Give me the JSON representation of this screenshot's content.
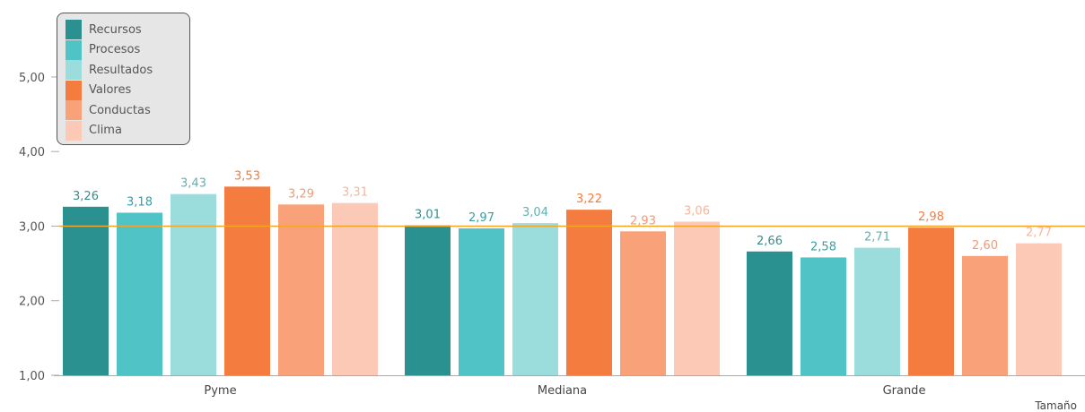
{
  "chart_data": {
    "type": "bar",
    "categories": [
      "Pyme",
      "Mediana",
      "Grande"
    ],
    "series": [
      {
        "name": "Recursos",
        "values": [
          3.26,
          3.01,
          2.66
        ],
        "color": "#2a9090"
      },
      {
        "name": "Procesos",
        "values": [
          3.18,
          2.97,
          2.58
        ],
        "color": "#4fc3c6"
      },
      {
        "name": "Resultados",
        "values": [
          3.43,
          3.04,
          2.71
        ],
        "color": "#9bdcdd"
      },
      {
        "name": "Valores",
        "values": [
          3.53,
          3.22,
          2.98
        ],
        "color": "#f57c3f"
      },
      {
        "name": "Conductas",
        "values": [
          3.29,
          2.93,
          2.6
        ],
        "color": "#f9a27a"
      },
      {
        "name": "Clima",
        "values": [
          3.31,
          3.06,
          2.77
        ],
        "color": "#fcc9b6"
      }
    ],
    "data_labels": [
      [
        "3,26",
        "3,01",
        "2,66"
      ],
      [
        "3,18",
        "2,97",
        "2,58"
      ],
      [
        "3,43",
        "3,04",
        "2,71"
      ],
      [
        "3,53",
        "3,22",
        "2,98"
      ],
      [
        "3,29",
        "2,93",
        "2,60"
      ],
      [
        "3,31",
        "3,06",
        "2,77"
      ]
    ],
    "label_colors": [
      "#3a8c8c",
      "#3a9ea0",
      "#5fb0b2",
      "#f57c3f",
      "#f59a74",
      "#f7b69c"
    ],
    "y_ticks": [
      1,
      2,
      3,
      4,
      5
    ],
    "y_tick_labels": [
      "1,00",
      "2,00",
      "3,00",
      "4,00",
      "5,00"
    ],
    "ylim": [
      1,
      5.9
    ],
    "reference_line": {
      "value": 3,
      "color": "#f5a623"
    },
    "xlabel": "Tamaño",
    "ylabel": "",
    "title": "",
    "legend_position": "top-left",
    "grid": false
  }
}
